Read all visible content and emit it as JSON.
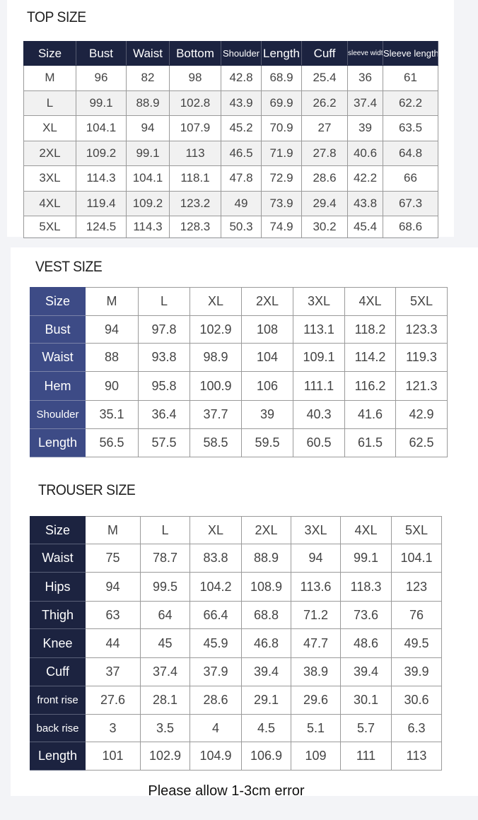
{
  "top": {
    "title": "TOP SIZE",
    "headers": [
      "Size",
      "Bust",
      "Waist",
      "Bottom",
      "Shoulder",
      "Length",
      "Cuff",
      "sleeve width",
      "Sleeve length"
    ],
    "rows": [
      [
        "M",
        "96",
        "82",
        "98",
        "42.8",
        "68.9",
        "25.4",
        "36",
        "61"
      ],
      [
        "L",
        "99.1",
        "88.9",
        "102.8",
        "43.9",
        "69.9",
        "26.2",
        "37.4",
        "62.2"
      ],
      [
        "XL",
        "104.1",
        "94",
        "107.9",
        "45.2",
        "70.9",
        "27",
        "39",
        "63.5"
      ],
      [
        "2XL",
        "109.2",
        "99.1",
        "113",
        "46.5",
        "71.9",
        "27.8",
        "40.6",
        "64.8"
      ],
      [
        "3XL",
        "114.3",
        "104.1",
        "118.1",
        "47.8",
        "72.9",
        "28.6",
        "42.2",
        "66"
      ],
      [
        "4XL",
        "119.4",
        "109.2",
        "123.2",
        "49",
        "73.9",
        "29.4",
        "43.8",
        "67.3"
      ],
      [
        "5XL",
        "124.5",
        "114.3",
        "128.3",
        "50.3",
        "74.9",
        "30.2",
        "45.4",
        "68.6"
      ]
    ],
    "header_color": "#1c2340"
  },
  "vest": {
    "title": "VEST SIZE",
    "rows": [
      [
        "Size",
        "M",
        "L",
        "XL",
        "2XL",
        "3XL",
        "4XL",
        "5XL"
      ],
      [
        "Bust",
        "94",
        "97.8",
        "102.9",
        "108",
        "113.1",
        "118.2",
        "123.3"
      ],
      [
        "Waist",
        "88",
        "93.8",
        "98.9",
        "104",
        "109.1",
        "114.2",
        "119.3"
      ],
      [
        "Hem",
        "90",
        "95.8",
        "100.9",
        "106",
        "111.1",
        "116.2",
        "121.3"
      ],
      [
        "Shoulder",
        "35.1",
        "36.4",
        "37.7",
        "39",
        "40.3",
        "41.6",
        "42.9"
      ],
      [
        "Length",
        "56.5",
        "57.5",
        "58.5",
        "59.5",
        "60.5",
        "61.5",
        "62.5"
      ]
    ],
    "label_color": "#3d4b86"
  },
  "trouser": {
    "title": "TROUSER SIZE",
    "rows": [
      [
        "Size",
        "M",
        "L",
        "XL",
        "2XL",
        "3XL",
        "4XL",
        "5XL"
      ],
      [
        "Waist",
        "75",
        "78.7",
        "83.8",
        "88.9",
        "94",
        "99.1",
        "104.1"
      ],
      [
        "Hips",
        "94",
        "99.5",
        "104.2",
        "108.9",
        "113.6",
        "118.3",
        "123"
      ],
      [
        "Thigh",
        "63",
        "64",
        "66.4",
        "68.8",
        "71.2",
        "73.6",
        "76"
      ],
      [
        "Knee",
        "44",
        "45",
        "45.9",
        "46.8",
        "47.7",
        "48.6",
        "49.5"
      ],
      [
        "Cuff",
        "37",
        "37.4",
        "37.9",
        "39.4",
        "38.9",
        "39.4",
        "39.9"
      ],
      [
        "front rise",
        "27.6",
        "28.1",
        "28.6",
        "29.1",
        "29.6",
        "30.1",
        "30.6"
      ],
      [
        "back rise",
        "3",
        "3.5",
        "4",
        "4.5",
        "5.1",
        "5.7",
        "6.3"
      ],
      [
        "Length",
        "101",
        "102.9",
        "104.9",
        "106.9",
        "109",
        "111",
        "113"
      ]
    ],
    "label_color": "#1c2340"
  },
  "note": "Please allow 1-3cm error"
}
